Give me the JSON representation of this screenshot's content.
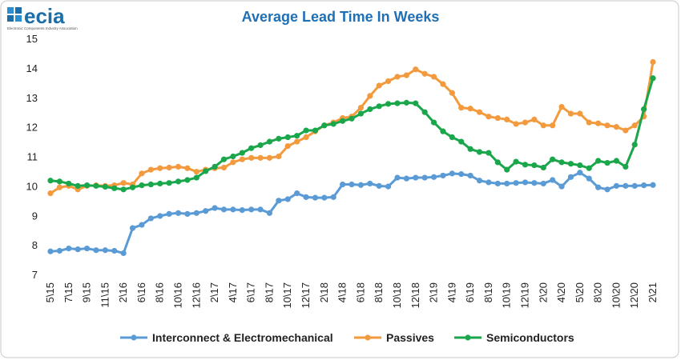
{
  "logo": {
    "name": "ecia",
    "tagline": "Electronic Components Industry Association"
  },
  "chart_data": {
    "type": "line",
    "title": "Average Lead Time In Weeks",
    "categories": [
      "5\\15",
      null,
      "7\\15",
      null,
      "9\\15",
      null,
      "11\\15",
      null,
      "2\\16",
      null,
      "6\\16",
      null,
      "8\\16",
      null,
      "10\\16",
      null,
      "12\\16",
      null,
      "2\\17",
      null,
      "4\\17",
      null,
      "6\\17",
      null,
      "8\\17",
      null,
      "10\\17",
      null,
      "12\\17",
      null,
      "2\\18",
      null,
      "4\\18",
      null,
      "6\\18",
      null,
      "8\\18",
      null,
      "10\\18",
      null,
      "12\\18",
      null,
      "2\\19",
      null,
      "4\\19",
      null,
      "6\\19",
      null,
      "8\\19",
      null,
      "10\\19",
      null,
      "12\\19",
      null,
      "2\\20",
      null,
      "4\\20",
      null,
      "5\\20",
      null,
      "8\\20",
      null,
      "10\\20",
      null,
      "12\\20",
      null,
      "2\\21"
    ],
    "series": [
      {
        "name": "Interconnect & Electromechanical",
        "color": "#5b9bd5",
        "values": [
          7.78,
          7.8,
          7.88,
          7.85,
          7.88,
          7.82,
          7.82,
          7.8,
          7.72,
          8.57,
          8.68,
          8.9,
          8.98,
          9.05,
          9.08,
          9.05,
          9.08,
          9.15,
          9.25,
          9.2,
          9.2,
          9.18,
          9.2,
          9.2,
          9.08,
          9.5,
          9.55,
          9.75,
          9.62,
          9.6,
          9.6,
          9.62,
          10.05,
          10.05,
          10.03,
          10.08,
          10.0,
          9.98,
          10.28,
          10.25,
          10.28,
          10.28,
          10.3,
          10.35,
          10.42,
          10.4,
          10.35,
          10.18,
          10.12,
          10.08,
          10.08,
          10.1,
          10.12,
          10.1,
          10.08,
          10.2,
          9.98,
          10.3,
          10.45,
          10.25,
          9.95,
          9.88,
          10.0,
          10.0,
          10.0,
          10.02,
          10.03
        ]
      },
      {
        "name": "Passives",
        "color": "#f39a3e",
        "values": [
          9.75,
          9.95,
          10.0,
          9.88,
          10.0,
          10.02,
          10.0,
          10.02,
          10.1,
          10.05,
          10.42,
          10.55,
          10.6,
          10.62,
          10.65,
          10.6,
          10.48,
          10.55,
          10.6,
          10.62,
          10.8,
          10.9,
          10.95,
          10.95,
          10.95,
          11.0,
          11.35,
          11.5,
          11.65,
          11.85,
          12.05,
          12.15,
          12.3,
          12.35,
          12.65,
          13.05,
          13.4,
          13.55,
          13.7,
          13.75,
          13.95,
          13.8,
          13.7,
          13.45,
          13.15,
          12.65,
          12.62,
          12.5,
          12.35,
          12.3,
          12.25,
          12.1,
          12.15,
          12.25,
          12.05,
          12.05,
          12.68,
          12.45,
          12.45,
          12.15,
          12.12,
          12.05,
          12.0,
          11.88,
          12.05,
          12.35,
          14.2
        ]
      },
      {
        "name": "Semiconductors",
        "color": "#1aa64a",
        "values": [
          10.18,
          10.15,
          10.08,
          10.0,
          10.02,
          10.0,
          9.97,
          9.92,
          9.88,
          9.95,
          10.02,
          10.05,
          10.08,
          10.1,
          10.15,
          10.2,
          10.28,
          10.5,
          10.65,
          10.9,
          11.0,
          11.12,
          11.28,
          11.38,
          11.5,
          11.6,
          11.65,
          11.7,
          11.88,
          11.88,
          12.05,
          12.1,
          12.2,
          12.28,
          12.45,
          12.6,
          12.7,
          12.78,
          12.8,
          12.82,
          12.8,
          12.5,
          12.15,
          11.85,
          11.65,
          11.5,
          11.25,
          11.15,
          11.12,
          10.8,
          10.55,
          10.82,
          10.72,
          10.7,
          10.62,
          10.9,
          10.8,
          10.75,
          10.7,
          10.6,
          10.85,
          10.78,
          10.85,
          10.65,
          11.4,
          12.6,
          13.65
        ]
      }
    ],
    "ylim": [
      7,
      15
    ],
    "yticks": [
      7,
      8,
      9,
      10,
      11,
      12,
      13,
      14,
      15
    ],
    "grid": false
  }
}
